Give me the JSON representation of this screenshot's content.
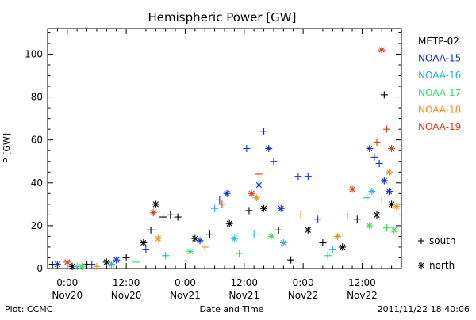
{
  "chart_data": {
    "type": "scatter",
    "title": "Hemispheric Power [GW]",
    "xlabel": "Date and Time",
    "ylabel": "P [GW]",
    "ylim": [
      0,
      112
    ],
    "xlim": [
      "2011-11-19T20:00",
      "2011-11-22T20:00"
    ],
    "yticks": [
      0,
      20,
      40,
      60,
      80,
      100
    ],
    "xticks": [
      {
        "t": "2011-11-20T00:00",
        "line1": "0:00",
        "line2": "Nov20"
      },
      {
        "t": "2011-11-20T12:00",
        "line1": "12:00",
        "line2": "Nov20"
      },
      {
        "t": "2011-11-21T00:00",
        "line1": "0:00",
        "line2": "Nov21"
      },
      {
        "t": "2011-11-21T12:00",
        "line1": "12:00",
        "line2": "Nov21"
      },
      {
        "t": "2011-11-22T00:00",
        "line1": "0:00",
        "line2": "Nov22"
      },
      {
        "t": "2011-11-22T12:00",
        "line1": "12:00",
        "line2": "Nov22"
      }
    ],
    "grid": false,
    "legend_position": "right",
    "marker_legend": [
      {
        "symbol": "+",
        "label": "south"
      },
      {
        "symbol": "*",
        "label": "north"
      }
    ],
    "series": [
      {
        "name": "METP-02",
        "color": "#000000",
        "points": [
          {
            "x": "2011-11-19T21:00",
            "y": 2,
            "m": "+"
          },
          {
            "x": "2011-11-20T01:00",
            "y": 1,
            "m": "*"
          },
          {
            "x": "2011-11-20T04:00",
            "y": 2,
            "m": "+"
          },
          {
            "x": "2011-11-20T08:00",
            "y": 3,
            "m": "*"
          },
          {
            "x": "2011-11-20T12:00",
            "y": 5,
            "m": "+"
          },
          {
            "x": "2011-11-20T15:30",
            "y": 12,
            "m": "*"
          },
          {
            "x": "2011-11-20T17:00",
            "y": 18,
            "m": "+"
          },
          {
            "x": "2011-11-20T18:00",
            "y": 30,
            "m": "*"
          },
          {
            "x": "2011-11-20T19:30",
            "y": 24,
            "m": "+"
          },
          {
            "x": "2011-11-20T21:00",
            "y": 25,
            "m": "+"
          },
          {
            "x": "2011-11-20T22:30",
            "y": 24,
            "m": "+"
          },
          {
            "x": "2011-11-21T02:00",
            "y": 14,
            "m": "*"
          },
          {
            "x": "2011-11-21T05:00",
            "y": 16,
            "m": "+"
          },
          {
            "x": "2011-11-21T09:00",
            "y": 21,
            "m": "*"
          },
          {
            "x": "2011-11-21T13:00",
            "y": 27,
            "m": "+"
          },
          {
            "x": "2011-11-21T16:00",
            "y": 28,
            "m": "*"
          },
          {
            "x": "2011-11-21T19:00",
            "y": 18,
            "m": "+"
          },
          {
            "x": "2011-11-21T21:30",
            "y": 4,
            "m": "+"
          },
          {
            "x": "2011-11-22T01:00",
            "y": 18,
            "m": "*"
          },
          {
            "x": "2011-11-22T04:00",
            "y": 12,
            "m": "+"
          },
          {
            "x": "2011-11-22T08:00",
            "y": 10,
            "m": "*"
          },
          {
            "x": "2011-11-22T11:00",
            "y": 23,
            "m": "+"
          },
          {
            "x": "2011-11-22T15:00",
            "y": 25,
            "m": "*"
          },
          {
            "x": "2011-11-22T16:30",
            "y": 81,
            "m": "+"
          },
          {
            "x": "2011-11-22T18:00",
            "y": 30,
            "m": "*"
          }
        ]
      },
      {
        "name": "NOAA-15",
        "color": "#1030d0",
        "points": [
          {
            "x": "2011-11-19T22:00",
            "y": 2,
            "m": "*"
          },
          {
            "x": "2011-11-20T05:00",
            "y": 2,
            "m": "+"
          },
          {
            "x": "2011-11-20T10:00",
            "y": 4,
            "m": "*"
          },
          {
            "x": "2011-11-20T16:00",
            "y": 9,
            "m": "+"
          },
          {
            "x": "2011-11-21T03:00",
            "y": 13,
            "m": "*"
          },
          {
            "x": "2011-11-21T07:00",
            "y": 32,
            "m": "+"
          },
          {
            "x": "2011-11-21T08:30",
            "y": 35,
            "m": "*"
          },
          {
            "x": "2011-11-21T12:30",
            "y": 56,
            "m": "+"
          },
          {
            "x": "2011-11-21T15:00",
            "y": 39,
            "m": "*"
          },
          {
            "x": "2011-11-21T16:00",
            "y": 64,
            "m": "+"
          },
          {
            "x": "2011-11-21T17:00",
            "y": 56,
            "m": "*"
          },
          {
            "x": "2011-11-21T18:00",
            "y": 50,
            "m": "+"
          },
          {
            "x": "2011-11-21T19:30",
            "y": 28,
            "m": "*"
          },
          {
            "x": "2011-11-21T23:00",
            "y": 43,
            "m": "+"
          },
          {
            "x": "2011-11-22T01:00",
            "y": 43,
            "m": "+"
          },
          {
            "x": "2011-11-22T03:00",
            "y": 23,
            "m": "+"
          },
          {
            "x": "2011-11-22T13:30",
            "y": 56,
            "m": "*"
          },
          {
            "x": "2011-11-22T14:30",
            "y": 52,
            "m": "+"
          },
          {
            "x": "2011-11-22T15:30",
            "y": 49,
            "m": "+"
          },
          {
            "x": "2011-11-22T16:30",
            "y": 41,
            "m": "*"
          },
          {
            "x": "2011-11-22T17:30",
            "y": 36,
            "m": "*"
          }
        ]
      },
      {
        "name": "NOAA-16",
        "color": "#20b8d8",
        "points": [
          {
            "x": "2011-11-20T02:00",
            "y": 1,
            "m": "+"
          },
          {
            "x": "2011-11-20T09:00",
            "y": 2,
            "m": "*"
          },
          {
            "x": "2011-11-20T20:00",
            "y": 6,
            "m": "+"
          },
          {
            "x": "2011-11-21T06:00",
            "y": 28,
            "m": "+"
          },
          {
            "x": "2011-11-21T10:00",
            "y": 14,
            "m": "*"
          },
          {
            "x": "2011-11-21T14:00",
            "y": 16,
            "m": "+"
          },
          {
            "x": "2011-11-21T20:00",
            "y": 12,
            "m": "*"
          },
          {
            "x": "2011-11-22T06:00",
            "y": 9,
            "m": "+"
          },
          {
            "x": "2011-11-22T13:00",
            "y": 33,
            "m": "+"
          },
          {
            "x": "2011-11-22T14:00",
            "y": 36,
            "m": "*"
          }
        ]
      },
      {
        "name": "NOAA-17",
        "color": "#30e060",
        "points": [
          {
            "x": "2011-11-20T03:00",
            "y": 1,
            "m": "*"
          },
          {
            "x": "2011-11-20T14:00",
            "y": 3,
            "m": "+"
          },
          {
            "x": "2011-11-21T01:00",
            "y": 8,
            "m": "*"
          },
          {
            "x": "2011-11-21T11:00",
            "y": 7,
            "m": "+"
          },
          {
            "x": "2011-11-21T17:30",
            "y": 15,
            "m": "*"
          },
          {
            "x": "2011-11-22T05:00",
            "y": 6,
            "m": "+"
          },
          {
            "x": "2011-11-22T09:00",
            "y": 25,
            "m": "+"
          },
          {
            "x": "2011-11-22T13:30",
            "y": 20,
            "m": "*"
          },
          {
            "x": "2011-11-22T17:00",
            "y": 19,
            "m": "+"
          },
          {
            "x": "2011-11-22T18:30",
            "y": 18,
            "m": "*"
          }
        ]
      },
      {
        "name": "NOAA-18",
        "color": "#f09020",
        "points": [
          {
            "x": "2011-11-20T06:00",
            "y": 1,
            "m": "+"
          },
          {
            "x": "2011-11-20T18:30",
            "y": 14,
            "m": "*"
          },
          {
            "x": "2011-11-21T04:00",
            "y": 10,
            "m": "+"
          },
          {
            "x": "2011-11-21T14:30",
            "y": 33,
            "m": "*"
          },
          {
            "x": "2011-11-21T23:30",
            "y": 25,
            "m": "+"
          },
          {
            "x": "2011-11-22T07:00",
            "y": 15,
            "m": "*"
          },
          {
            "x": "2011-11-22T16:00",
            "y": 32,
            "m": "+"
          },
          {
            "x": "2011-11-22T17:30",
            "y": 45,
            "m": "*"
          },
          {
            "x": "2011-11-22T19:00",
            "y": 29,
            "m": "*"
          }
        ]
      },
      {
        "name": "NOAA-19",
        "color": "#e03818",
        "points": [
          {
            "x": "2011-11-20T00:00",
            "y": 3,
            "m": "*"
          },
          {
            "x": "2011-11-20T17:30",
            "y": 26,
            "m": "*"
          },
          {
            "x": "2011-11-21T07:30",
            "y": 30,
            "m": "+"
          },
          {
            "x": "2011-11-21T13:30",
            "y": 35,
            "m": "*"
          },
          {
            "x": "2011-11-21T15:00",
            "y": 44,
            "m": "+"
          },
          {
            "x": "2011-11-22T10:00",
            "y": 37,
            "m": "*"
          },
          {
            "x": "2011-11-22T15:00",
            "y": 59,
            "m": "+"
          },
          {
            "x": "2011-11-22T16:00",
            "y": 102,
            "m": "*"
          },
          {
            "x": "2011-11-22T17:00",
            "y": 65,
            "m": "+"
          },
          {
            "x": "2011-11-22T18:00",
            "y": 56,
            "m": "*"
          }
        ]
      }
    ]
  },
  "footer": {
    "plot_source": "Plot: CCMC",
    "timestamp": "2011/11/22 18:40:06"
  }
}
